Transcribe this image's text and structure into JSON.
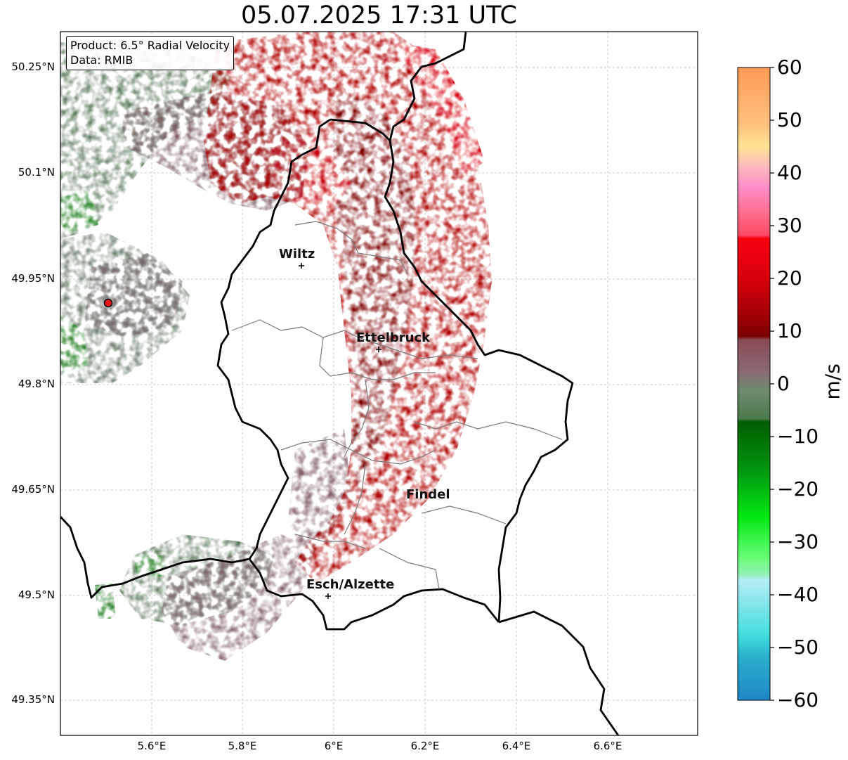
{
  "title": "05.07.2025 17:31 UTC",
  "info": {
    "product": "Product: 6.5° Radial Velocity",
    "data": "Data: RMIB"
  },
  "lat_labels": [
    "50.25°N",
    "50.1°N",
    "49.95°N",
    "49.8°N",
    "49.65°N",
    "49.5°N",
    "49.35°N"
  ],
  "lon_labels": [
    "5.6°E",
    "5.8°E",
    "6°E",
    "6.2°E",
    "6.4°E",
    "6.6°E"
  ],
  "cities": [
    {
      "name": "Wiltz"
    },
    {
      "name": "Ettelbruck"
    },
    {
      "name": "Findel"
    },
    {
      "name": "Esch/Alzette"
    }
  ],
  "colorbar": {
    "unit": "m/s",
    "tick_labels": [
      "60",
      "50",
      "40",
      "30",
      "20",
      "10",
      "0",
      "−10",
      "−20",
      "−30",
      "−40",
      "−50",
      "−60"
    ],
    "range": [
      -60,
      60
    ]
  },
  "colors": {
    "outbound": "#b00005",
    "inbound": "#5e7e5e",
    "radar_site": "#e8141e"
  }
}
